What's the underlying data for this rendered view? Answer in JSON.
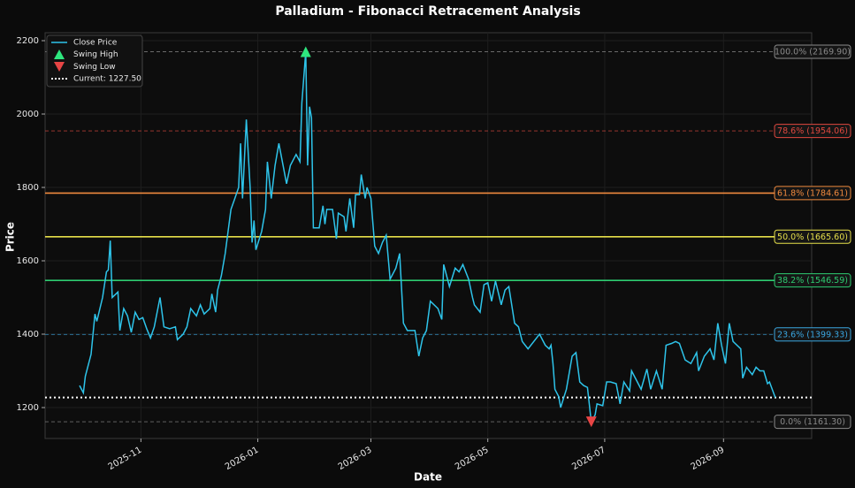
{
  "chart_data": {
    "type": "line",
    "title": "Palladium - Fibonacci Retracement Analysis",
    "xlabel": "Date",
    "ylabel": "Price",
    "x": [
      "2025-09-30",
      "2025-10-02",
      "2025-10-03",
      "2025-10-06",
      "2025-10-08",
      "2025-10-09",
      "2025-10-12",
      "2025-10-14",
      "2025-10-15",
      "2025-10-16",
      "2025-10-17",
      "2025-10-20",
      "2025-10-21",
      "2025-10-23",
      "2025-10-25",
      "2025-10-27",
      "2025-10-29",
      "2025-10-31",
      "2025-11-02",
      "2025-11-04",
      "2025-11-06",
      "2025-11-08",
      "2025-11-11",
      "2025-11-13",
      "2025-11-16",
      "2025-11-19",
      "2025-11-20",
      "2025-11-23",
      "2025-11-25",
      "2025-11-27",
      "2025-11-30",
      "2025-12-02",
      "2025-12-04",
      "2025-12-07",
      "2025-12-08",
      "2025-12-10",
      "2025-12-11",
      "2025-12-13",
      "2025-12-15",
      "2025-12-18",
      "2025-12-20",
      "2025-12-22",
      "2025-12-23",
      "2025-12-24",
      "2025-12-26",
      "2025-12-28",
      "2025-12-29",
      "2025-12-30",
      "2025-12-31",
      "2026-01-03",
      "2026-01-05",
      "2026-01-06",
      "2026-01-08",
      "2026-01-10",
      "2026-01-12",
      "2026-01-16",
      "2026-01-18",
      "2026-01-21",
      "2026-01-23",
      "2026-01-24",
      "2026-01-26",
      "2026-01-27",
      "2026-01-28",
      "2026-01-29",
      "2026-01-30",
      "2026-02-02",
      "2026-02-04",
      "2026-02-05",
      "2026-02-06",
      "2026-02-09",
      "2026-02-11",
      "2026-02-12",
      "2026-02-15",
      "2026-02-16",
      "2026-02-18",
      "2026-02-20",
      "2026-02-21",
      "2026-02-23",
      "2026-02-24",
      "2026-02-26",
      "2026-02-27",
      "2026-03-01",
      "2026-03-03",
      "2026-03-05",
      "2026-03-07",
      "2026-03-09",
      "2026-03-11",
      "2026-03-14",
      "2026-03-16",
      "2026-03-18",
      "2026-03-20",
      "2026-03-24",
      "2026-03-26",
      "2026-03-28",
      "2026-03-30",
      "2026-04-01",
      "2026-04-05",
      "2026-04-07",
      "2026-04-08",
      "2026-04-11",
      "2026-04-14",
      "2026-04-16",
      "2026-04-18",
      "2026-04-21",
      "2026-04-23",
      "2026-04-24",
      "2026-04-27",
      "2026-04-29",
      "2026-05-01",
      "2026-05-03",
      "2026-05-05",
      "2026-05-08",
      "2026-05-10",
      "2026-05-12",
      "2026-05-15",
      "2026-05-17",
      "2026-05-19",
      "2026-05-22",
      "2026-05-25",
      "2026-05-28",
      "2026-05-31",
      "2026-06-02",
      "2026-06-03",
      "2026-06-04",
      "2026-06-05",
      "2026-06-07",
      "2026-06-08",
      "2026-06-11",
      "2026-06-14",
      "2026-06-16",
      "2026-06-18",
      "2026-06-20",
      "2026-06-22",
      "2026-06-24",
      "2026-06-26",
      "2026-06-27",
      "2026-06-30",
      "2026-07-02",
      "2026-07-04",
      "2026-07-07",
      "2026-07-09",
      "2026-07-11",
      "2026-07-14",
      "2026-07-15",
      "2026-07-18",
      "2026-07-20",
      "2026-07-23",
      "2026-07-25",
      "2026-07-28",
      "2026-07-31",
      "2026-08-02",
      "2026-08-05",
      "2026-08-07",
      "2026-08-09",
      "2026-08-12",
      "2026-08-15",
      "2026-08-18",
      "2026-08-19",
      "2026-08-22",
      "2026-08-25",
      "2026-08-27",
      "2026-08-29",
      "2026-08-31",
      "2026-09-02",
      "2026-09-04",
      "2026-09-06",
      "2026-09-10",
      "2026-09-11",
      "2026-09-13",
      "2026-09-16",
      "2026-09-18",
      "2026-09-20",
      "2026-09-22",
      "2026-09-24",
      "2026-09-25",
      "2026-09-28"
    ],
    "series": [
      {
        "name": "Close Price",
        "color": "#2ec4ea",
        "values": [
          1260,
          1240,
          1285,
          1345,
          1455,
          1435,
          1500,
          1570,
          1575,
          1655,
          1500,
          1515,
          1410,
          1470,
          1450,
          1405,
          1460,
          1440,
          1445,
          1415,
          1390,
          1420,
          1500,
          1420,
          1415,
          1420,
          1385,
          1400,
          1420,
          1470,
          1450,
          1480,
          1455,
          1470,
          1510,
          1460,
          1520,
          1560,
          1620,
          1740,
          1770,
          1800,
          1920,
          1770,
          1985,
          1800,
          1650,
          1710,
          1630,
          1680,
          1740,
          1870,
          1770,
          1860,
          1920,
          1810,
          1860,
          1890,
          1870,
          2030,
          2169.9,
          1860,
          2020,
          1990,
          1690,
          1690,
          1750,
          1700,
          1740,
          1740,
          1660,
          1730,
          1720,
          1680,
          1770,
          1690,
          1780,
          1780,
          1835,
          1770,
          1800,
          1770,
          1640,
          1620,
          1650,
          1670,
          1550,
          1580,
          1620,
          1430,
          1410,
          1410,
          1340,
          1390,
          1410,
          1490,
          1470,
          1440,
          1590,
          1530,
          1580,
          1570,
          1590,
          1550,
          1500,
          1480,
          1460,
          1535,
          1540,
          1490,
          1545,
          1480,
          1520,
          1530,
          1430,
          1420,
          1380,
          1360,
          1380,
          1400,
          1370,
          1360,
          1370,
          1320,
          1250,
          1230,
          1200,
          1250,
          1340,
          1350,
          1270,
          1260,
          1255,
          1161.3,
          1180,
          1210,
          1205,
          1270,
          1270,
          1265,
          1210,
          1270,
          1245,
          1300,
          1270,
          1250,
          1305,
          1250,
          1300,
          1250,
          1370,
          1375,
          1380,
          1375,
          1330,
          1320,
          1350,
          1300,
          1340,
          1360,
          1330,
          1430,
          1370,
          1320,
          1430,
          1380,
          1360,
          1280,
          1310,
          1290,
          1310,
          1300,
          1300,
          1265,
          1270,
          1227.5
        ]
      }
    ],
    "swing_high": {
      "name": "Swing High",
      "x": "2026-01-26",
      "value": 2169.9,
      "color": "#2ee67e"
    },
    "swing_low": {
      "name": "Swing Low",
      "x": "2026-06-24",
      "value": 1161.3,
      "color": "#e84545"
    },
    "current": {
      "name": "Current: 1227.50",
      "value": 1227.5,
      "color": "#ffffff"
    },
    "levels": [
      {
        "label": "100.0% (2169.90)",
        "value": 2169.9,
        "color": "#8a8a8a",
        "style": "dashed"
      },
      {
        "label": "78.6% (1954.06)",
        "value": 1954.06,
        "color": "#e0483f",
        "style": "dashed"
      },
      {
        "label": "61.8% (1784.61)",
        "value": 1784.61,
        "color": "#f08a3e",
        "style": "solid"
      },
      {
        "label": "50.0% (1665.60)",
        "value": 1665.6,
        "color": "#e6df4a",
        "style": "solid"
      },
      {
        "label": "38.2% (1546.59)",
        "value": 1546.59,
        "color": "#2ecc71",
        "style": "solid"
      },
      {
        "label": "23.6% (1399.33)",
        "value": 1399.33,
        "color": "#3aa6e0",
        "style": "dashed"
      },
      {
        "label": "0.0% (1161.30)",
        "value": 1161.3,
        "color": "#8a8a8a",
        "style": "dashed"
      }
    ],
    "xlim": [
      "2025-09-12",
      "2026-10-17"
    ],
    "xticks": [
      {
        "value": "2025-11-01",
        "label": "2025-11"
      },
      {
        "value": "2026-01-01",
        "label": "2026-01"
      },
      {
        "value": "2026-03-01",
        "label": "2026-03"
      },
      {
        "value": "2026-05-01",
        "label": "2026-05"
      },
      {
        "value": "2026-07-01",
        "label": "2026-07"
      },
      {
        "value": "2026-09-01",
        "label": "2026-09"
      }
    ],
    "ylim": [
      1115.7,
      2221.7
    ],
    "yticks": [
      1200,
      1400,
      1600,
      1800,
      2000,
      2200
    ],
    "grid": true,
    "legend": "upper left"
  }
}
